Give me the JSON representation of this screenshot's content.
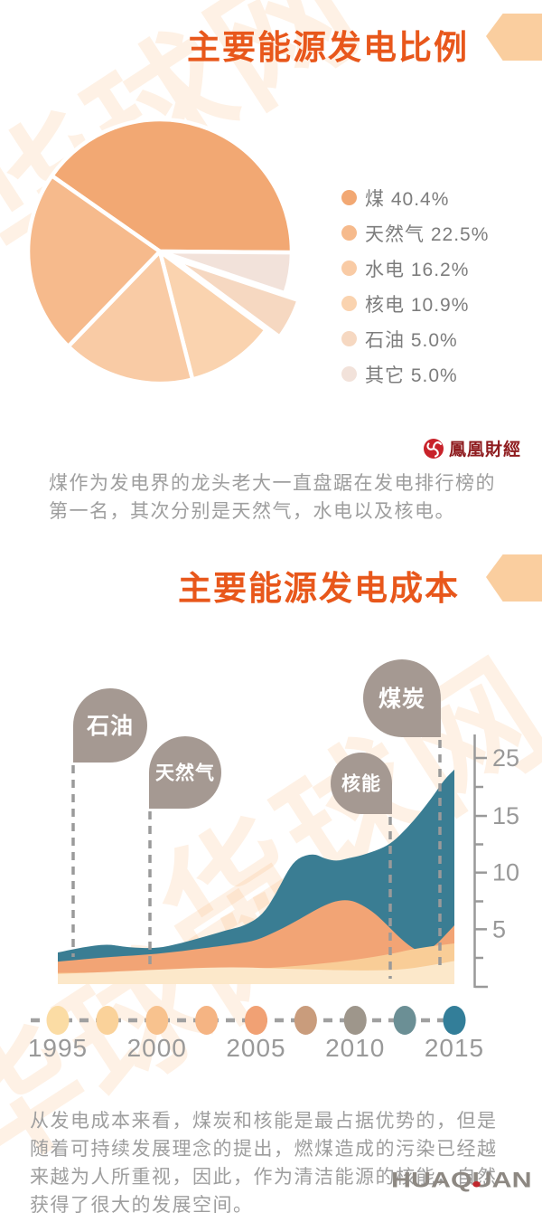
{
  "watermark": {
    "text": "华球网"
  },
  "sections": [
    {
      "title": "主要能源发电比例"
    },
    {
      "title": "主要能源发电成本"
    }
  ],
  "source_logo": {
    "text": "鳳凰財經"
  },
  "brand_logo": {
    "text": "HUAQUAN"
  },
  "paragraphs": [
    {
      "lines": [
        "煤作为发电界的龙头老大一直盘踞在发电排行榜的",
        "第一名，其次分别是天然气，水电以及核电。"
      ]
    },
    {
      "lines": [
        "从发电成本来看，煤炭和核能是最占据优势的，但是",
        "随着可持续发展理念的提出，燃煤造成的污染已经越",
        "来越为人所重视，因此，作为清洁能源的核能，自然",
        "获得了很大的发展空间。"
      ]
    }
  ],
  "chart_data": [
    {
      "type": "pie",
      "title": "主要能源发电比例",
      "labels": [
        "煤",
        "天然气",
        "水电",
        "核电",
        "石油",
        "其它"
      ],
      "values": [
        40.4,
        22.5,
        16.2,
        10.9,
        5.0,
        5.0
      ],
      "colors": [
        "#F2A873",
        "#F6BA8C",
        "#F9CBA5",
        "#FAD3AF",
        "#F6D8C1",
        "#F2E2DA"
      ],
      "legend": [
        "煤 40.4%",
        "天然气 22.5%",
        "水电 16.2%",
        "核电 10.9%",
        "石油 5.0%",
        "其它 5.0%"
      ],
      "exploded_label": "石油"
    },
    {
      "type": "area",
      "title": "主要能源发电成本",
      "x_tick_labels": [
        "1995",
        "2000",
        "2005",
        "2010",
        "2015"
      ],
      "x_range": [
        1995,
        2015
      ],
      "y_tick_labels": [
        "25",
        "15",
        "10",
        "5"
      ],
      "y_tick_values": [
        25,
        15,
        10,
        5
      ],
      "annotations": [
        {
          "label": "石油"
        },
        {
          "label": "天然气"
        },
        {
          "label": "核能"
        },
        {
          "label": "煤炭"
        }
      ],
      "annotation_bubble_color": "#A59992",
      "timeline": {
        "years": [
          1995,
          1997.5,
          2000,
          2002.5,
          2005,
          2007.5,
          2010,
          2012.5,
          2015
        ],
        "dot_colors": [
          "#FBDCA4",
          "#FAD29A",
          "#F8C28E",
          "#F5B483",
          "#F1A174",
          "#C99C7C",
          "#9E968B",
          "#6B8F95",
          "#337E99"
        ]
      },
      "series": [
        {
          "name": "煤炭",
          "color": "#3A7D93",
          "x": [
            1995,
            1996.2,
            1997.5,
            1998.5,
            2000,
            2001.2,
            2002.5,
            2003.7,
            2004.4,
            2005.3,
            2006,
            2006.6,
            2007.1,
            2007.9,
            2008.5,
            2009.1,
            2009.7,
            2010.3,
            2011.3,
            2011.9,
            2012.6,
            2013.3,
            2014,
            2014.5,
            2015
          ],
          "y": [
            2.95,
            3.4,
            3.7,
            3.4,
            3.3,
            3.75,
            4.4,
            5.0,
            5.3,
            6.2,
            8.1,
            10.2,
            11.3,
            11.7,
            11.2,
            11.0,
            11.3,
            11.5,
            12.1,
            12.7,
            13.9,
            15.6,
            18.8,
            21.3,
            23.0
          ]
        },
        {
          "name": "核能",
          "color": "#F2A475",
          "x": [
            1995,
            1997.5,
            2000,
            2002.5,
            2004,
            2005,
            2006,
            2006.7,
            2007.5,
            2008.3,
            2009,
            2009.7,
            2010.3,
            2011,
            2011.7,
            2012.4,
            2013,
            2013.4,
            2014,
            2014.5,
            2015
          ],
          "y": [
            2.15,
            2.55,
            2.8,
            3.35,
            3.7,
            4.0,
            4.8,
            5.4,
            6.2,
            7.0,
            7.5,
            7.6,
            7.2,
            6.4,
            5.2,
            4.0,
            3.2,
            3.0,
            3.5,
            4.4,
            5.35
          ]
        },
        {
          "name": "天然气",
          "color": "#F9CD97",
          "x": [
            1995,
            2000,
            2005,
            2007.5,
            2010,
            2011.8,
            2013,
            2015
          ],
          "y": [
            1.15,
            1.2,
            1.5,
            1.8,
            2.3,
            2.8,
            3.3,
            3.75
          ]
        },
        {
          "name": "石油",
          "color": "#FCE8CA",
          "x": [
            1995,
            1999,
            2003.5,
            2006.7,
            2010,
            2012.2,
            2013.8,
            2015
          ],
          "y": [
            1.05,
            1.35,
            1.7,
            1.5,
            1.35,
            1.4,
            1.8,
            2.2
          ]
        }
      ]
    }
  ]
}
